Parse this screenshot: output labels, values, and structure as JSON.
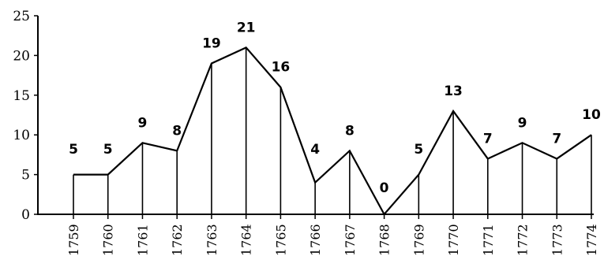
{
  "chart_data": {
    "type": "line",
    "title": "",
    "xlabel": "",
    "ylabel": "",
    "x": [
      "1759",
      "1760",
      "1761",
      "1762",
      "1763",
      "1764",
      "1765",
      "1766",
      "1767",
      "1768",
      "1769",
      "1770",
      "1771",
      "1772",
      "1773",
      "1774"
    ],
    "series": [
      {
        "values": [
          5,
          5,
          9,
          8,
          19,
          21,
          16,
          4,
          8,
          0,
          5,
          13,
          7,
          9,
          7,
          10
        ]
      }
    ],
    "data_labels": [
      "5",
      "5",
      "9",
      "8",
      "19",
      "21",
      "16",
      "4",
      "8",
      "0",
      "5",
      "13",
      "7",
      "9",
      "7",
      "10"
    ],
    "ylim": [
      0,
      25
    ],
    "yticks": [
      0,
      5,
      10,
      15,
      20,
      25
    ],
    "ytick_labels": [
      "0",
      "5",
      "10",
      "15",
      "20",
      "25"
    ],
    "drop_lines": true,
    "grid": false,
    "legend": "none",
    "color": "#000000"
  }
}
